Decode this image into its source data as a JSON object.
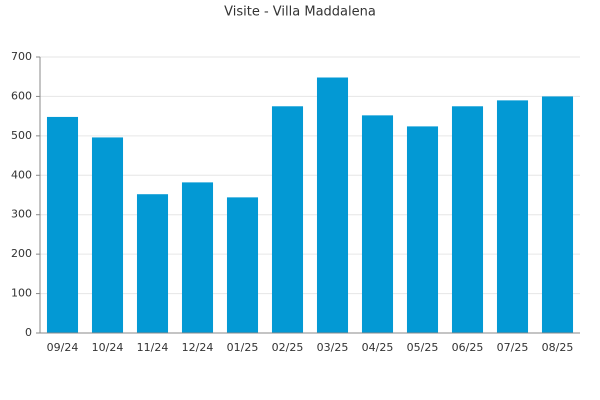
{
  "chart_data": {
    "type": "bar",
    "title": "Visite - Villa Maddalena",
    "categories": [
      "09/24",
      "10/24",
      "11/24",
      "12/24",
      "01/25",
      "02/25",
      "03/25",
      "04/25",
      "05/25",
      "06/25",
      "07/25",
      "08/25"
    ],
    "values": [
      548,
      496,
      352,
      382,
      344,
      575,
      648,
      552,
      524,
      575,
      590,
      600
    ],
    "color": "#0399d4",
    "ylim": [
      0,
      700
    ],
    "yticks": [
      0,
      100,
      200,
      300,
      400,
      500,
      600,
      700
    ],
    "grid": true
  }
}
